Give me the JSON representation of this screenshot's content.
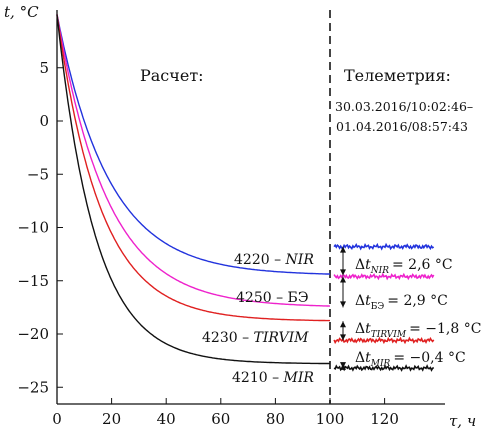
{
  "chart_data": {
    "type": "line",
    "ylabel": "t, °C",
    "xlabel": "τ, ч",
    "xlim": [
      0,
      150
    ],
    "ylim": [
      -26,
      10
    ],
    "x_ticks": [
      0,
      20,
      40,
      60,
      80,
      100,
      120
    ],
    "y_ticks": [
      5,
      0,
      -5,
      -10,
      -15,
      -20,
      -25
    ],
    "y_tick_labels": [
      "5",
      "0",
      "−5",
      "−10",
      "−15",
      "−20",
      "−25"
    ],
    "top_label": "t, °C",
    "boundary_x": 100,
    "section_labels": {
      "left": "Расчет:",
      "right": "Телеметрия:"
    },
    "telemetry_period": [
      "30.03.2016/10:02:46–",
      "01.04.2016/08:57:43"
    ],
    "series": [
      {
        "name": "4220 – NIR",
        "code": "4220",
        "unit": "NIR",
        "color": "#2233dd",
        "start": 10,
        "end": -14.5,
        "tau": 19,
        "telemetry": -11.8
      },
      {
        "name": "4250 – БЭ",
        "code": "4250",
        "unit": "БЭ",
        "color": "#ee22cc",
        "start": 10,
        "end": -17.5,
        "tau": 18.5,
        "telemetry": -14.6
      },
      {
        "name": "4230 – TIRVIM",
        "code": "4230",
        "unit": "TIRVIM",
        "color": "#e02020",
        "start": 10,
        "end": -18.8,
        "tau": 16,
        "telemetry": -20.6
      },
      {
        "name": "4210 – MIR",
        "code": "4210",
        "unit": "MIR",
        "color": "#111111",
        "start": 10,
        "end": -22.8,
        "tau": 14,
        "telemetry": -23.2
      }
    ],
    "deltas": [
      {
        "sub": "NIR",
        "value": "= 2,6 °C"
      },
      {
        "sub": "БЭ",
        "value": "= 2,9 °C"
      },
      {
        "sub": "TIRVIM",
        "value": "= −1,8 °C"
      },
      {
        "sub": "MIR",
        "value": "= −0,4 °C"
      }
    ]
  }
}
